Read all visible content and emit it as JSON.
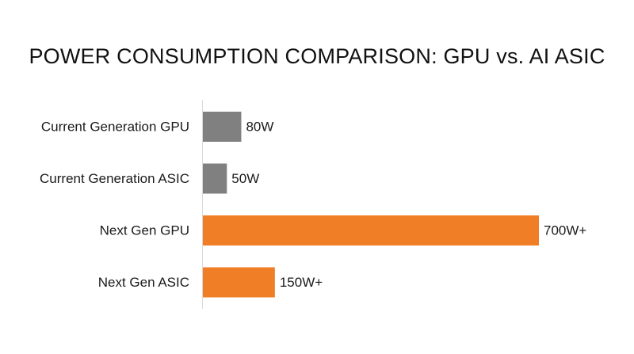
{
  "chart_data": {
    "type": "bar",
    "orientation": "horizontal",
    "title": "POWER CONSUMPTION COMPARISON: GPU vs. AI ASIC",
    "xlabel": "",
    "ylabel": "",
    "categories": [
      "Current Generation GPU",
      "Current Generation ASIC",
      "Next Gen GPU",
      "Next Gen ASIC"
    ],
    "values": [
      80,
      50,
      700,
      150
    ],
    "data_labels": [
      "80W",
      "50W",
      "700W+",
      "150W+"
    ],
    "bar_colors": [
      "#808080",
      "#808080",
      "#F07E26",
      "#F07E26"
    ],
    "xlim": [
      0,
      700
    ],
    "grid": false,
    "legend": "none"
  }
}
